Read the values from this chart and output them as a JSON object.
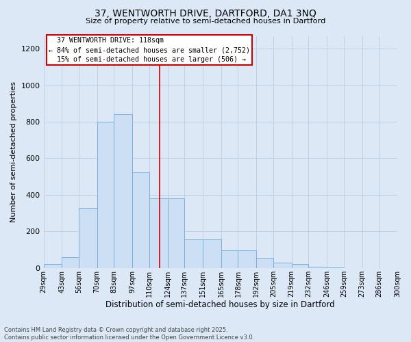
{
  "title_line1": "37, WENTWORTH DRIVE, DARTFORD, DA1 3NQ",
  "title_line2": "Size of property relative to semi-detached houses in Dartford",
  "xlabel": "Distribution of semi-detached houses by size in Dartford",
  "ylabel": "Number of semi-detached properties",
  "bin_edges": [
    29,
    43,
    56,
    70,
    83,
    97,
    110,
    124,
    137,
    151,
    165,
    178,
    192,
    205,
    219,
    232,
    246,
    259,
    273,
    286,
    300
  ],
  "bin_labels": [
    "29sqm",
    "43sqm",
    "56sqm",
    "70sqm",
    "83sqm",
    "97sqm",
    "110sqm",
    "124sqm",
    "137sqm",
    "151sqm",
    "165sqm",
    "178sqm",
    "192sqm",
    "205sqm",
    "219sqm",
    "232sqm",
    "246sqm",
    "259sqm",
    "273sqm",
    "286sqm",
    "300sqm"
  ],
  "values": [
    20,
    60,
    330,
    800,
    840,
    525,
    380,
    380,
    155,
    155,
    95,
    95,
    55,
    30,
    20,
    8,
    3,
    1,
    0,
    0
  ],
  "bar_color": "#ccdff5",
  "bar_edge_color": "#7ab0d8",
  "grid_color": "#c0d0e8",
  "property_sqm": 118,
  "property_label": "37 WENTWORTH DRIVE: 118sqm",
  "pct_smaller": 84,
  "n_smaller": 2752,
  "pct_larger": 15,
  "n_larger": 506,
  "annotation_box_color": "#cc0000",
  "vline_color": "#cc0000",
  "background_color": "#dce8f5",
  "footnote_line1": "Contains HM Land Registry data © Crown copyright and database right 2025.",
  "footnote_line2": "Contains public sector information licensed under the Open Government Licence v3.0.",
  "ylim": [
    0,
    1270
  ],
  "yticks": [
    0,
    200,
    400,
    600,
    800,
    1000,
    1200
  ]
}
